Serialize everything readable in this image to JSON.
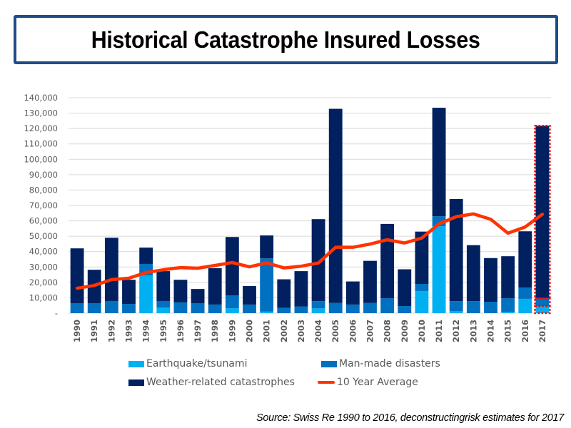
{
  "header": {
    "title": "Historical Catastrophe Insured Losses"
  },
  "source": "Source: Swiss Re 1990 to 2016, deconstructingrisk estimates for 2017",
  "colors": {
    "earthquake": "#00b0f0",
    "manmade": "#0070c0",
    "weather": "#002060",
    "average": "#ff3300",
    "highlight": "#ff0000",
    "title_border": "#1f4e86",
    "grid": "#d9d9d9"
  },
  "chart_data": {
    "type": "bar",
    "stacked": true,
    "title": "Historical Catastrophe Insured Losses",
    "xlabel": "",
    "ylabel": "",
    "ylim": [
      0,
      140000
    ],
    "y_ticks": [
      0,
      10000,
      20000,
      30000,
      40000,
      50000,
      60000,
      70000,
      80000,
      90000,
      100000,
      110000,
      120000,
      130000,
      140000
    ],
    "y_tick_labels": [
      "-",
      "10,000",
      "20,000",
      "30,000",
      "40,000",
      "50,000",
      "60,000",
      "70,000",
      "80,000",
      "90,000",
      "100,000",
      "110,000",
      "120,000",
      "130,000",
      "140,000"
    ],
    "grid": true,
    "legend_position": "bottom",
    "categories": [
      "1990",
      "1991",
      "1992",
      "1993",
      "1994",
      "1995",
      "1996",
      "1997",
      "1998",
      "1999",
      "2000",
      "2001",
      "2002",
      "2003",
      "2004",
      "2005",
      "2006",
      "2007",
      "2008",
      "2009",
      "2010",
      "2011",
      "2012",
      "2013",
      "2014",
      "2015",
      "2016",
      "2017"
    ],
    "series": [
      {
        "name": "Earthquake/tsunami",
        "kind": "bar",
        "values": [
          0,
          0,
          0,
          0,
          24500,
          3700,
          0,
          0,
          0,
          3200,
          0,
          1000,
          0,
          0,
          3100,
          0,
          0,
          0,
          0,
          0,
          14400,
          56500,
          1400,
          0,
          0,
          900,
          9300,
          4600
        ]
      },
      {
        "name": "Man-made disasters",
        "kind": "bar",
        "values": [
          6500,
          6500,
          7900,
          6000,
          7500,
          4200,
          7000,
          6500,
          5600,
          8400,
          5600,
          34600,
          3500,
          4400,
          4700,
          6700,
          5600,
          6700,
          9700,
          4600,
          4600,
          6500,
          6400,
          7800,
          7400,
          8800,
          7400,
          5100
        ]
      },
      {
        "name": "Weather-related catastrophes",
        "kind": "bar",
        "values": [
          35600,
          21700,
          41100,
          15700,
          10600,
          19400,
          14700,
          9200,
          23600,
          37900,
          12000,
          14900,
          18500,
          22900,
          53300,
          126100,
          15000,
          27300,
          48300,
          23900,
          34000,
          70500,
          66400,
          36400,
          28400,
          27300,
          36500,
          112100
        ]
      },
      {
        "name": "10 Year Average",
        "kind": "line",
        "values": [
          16200,
          18000,
          21800,
          22700,
          26400,
          28200,
          29600,
          29200,
          31000,
          32900,
          30100,
          32700,
          29400,
          30500,
          32600,
          42800,
          42800,
          44900,
          47700,
          45600,
          48800,
          58000,
          62700,
          64500,
          61000,
          52000,
          56000,
          64300
        ]
      }
    ],
    "annotations": [
      {
        "category": "2017",
        "type": "dashed-highlight-box",
        "note": "estimate"
      }
    ]
  },
  "legend": [
    {
      "label": "Earthquake/tsunami",
      "type": "swatch",
      "color_key": "earthquake"
    },
    {
      "label": "Man-made disasters",
      "type": "swatch",
      "color_key": "manmade"
    },
    {
      "label": "Weather-related catastrophes",
      "type": "swatch",
      "color_key": "weather"
    },
    {
      "label": "10 Year Average",
      "type": "line",
      "color_key": "average"
    }
  ]
}
